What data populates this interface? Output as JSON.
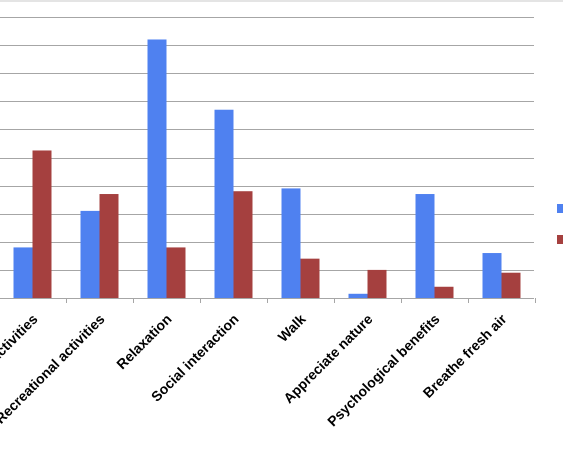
{
  "chart_data": {
    "type": "bar",
    "categories": [
      "Activities",
      "Recreational activities",
      "Relaxation",
      "Social interaction",
      "Walk",
      "Appreciate nature",
      "Psychological benefits",
      "Breathe fresh air"
    ],
    "series": [
      {
        "color": "#4F81F0",
        "values": [
          18,
          31,
          92,
          67,
          39,
          1.5,
          37,
          16
        ]
      },
      {
        "color": "#A5403F",
        "values": [
          52.5,
          37,
          18,
          38,
          14,
          10,
          4,
          9
        ]
      }
    ],
    "ylim": [
      0,
      100
    ],
    "grid": true,
    "legend": "right"
  }
}
